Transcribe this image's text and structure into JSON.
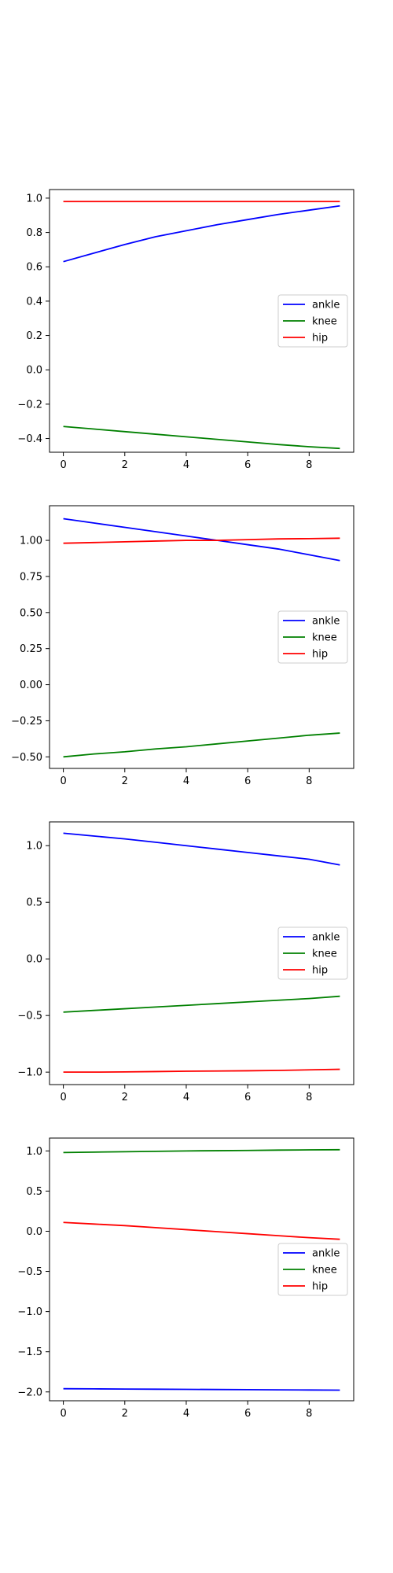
{
  "figure": {
    "background": "#ffffff"
  },
  "chart_data": [
    {
      "type": "line",
      "x": [
        0,
        1,
        2,
        3,
        4,
        5,
        6,
        7,
        8,
        9
      ],
      "xlim": [
        -0.45,
        9.45
      ],
      "ylim": [
        -0.48,
        1.05
      ],
      "xticks": [
        0,
        2,
        4,
        6,
        8
      ],
      "xtick_labels": [
        "0",
        "2",
        "4",
        "6",
        "8"
      ],
      "yticks": [
        -0.4,
        -0.2,
        0.0,
        0.2,
        0.4,
        0.6,
        0.8,
        1.0
      ],
      "ytick_labels": [
        "−0.4",
        "−0.2",
        "0.0",
        "0.2",
        "0.4",
        "0.6",
        "0.8",
        "1.0"
      ],
      "legend_position": "center-right",
      "series": [
        {
          "name": "ankle",
          "color": "#0000ff",
          "values": [
            0.63,
            0.68,
            0.73,
            0.775,
            0.81,
            0.845,
            0.875,
            0.905,
            0.93,
            0.955
          ]
        },
        {
          "name": "knee",
          "color": "#008000",
          "values": [
            -0.33,
            -0.345,
            -0.36,
            -0.375,
            -0.39,
            -0.405,
            -0.42,
            -0.435,
            -0.448,
            -0.458
          ]
        },
        {
          "name": "hip",
          "color": "#ff0000",
          "values": [
            0.98,
            0.98,
            0.98,
            0.98,
            0.98,
            0.98,
            0.98,
            0.98,
            0.98,
            0.98
          ]
        }
      ]
    },
    {
      "type": "line",
      "x": [
        0,
        1,
        2,
        3,
        4,
        5,
        6,
        7,
        8,
        9
      ],
      "xlim": [
        -0.45,
        9.45
      ],
      "ylim": [
        -0.58,
        1.24
      ],
      "xticks": [
        0,
        2,
        4,
        6,
        8
      ],
      "xtick_labels": [
        "0",
        "2",
        "4",
        "6",
        "8"
      ],
      "yticks": [
        -0.5,
        -0.25,
        0.0,
        0.25,
        0.5,
        0.75,
        1.0
      ],
      "ytick_labels": [
        "−0.50",
        "−0.25",
        "0.00",
        "0.25",
        "0.50",
        "0.75",
        "1.00"
      ],
      "legend_position": "center-right",
      "series": [
        {
          "name": "ankle",
          "color": "#0000ff",
          "values": [
            1.15,
            1.12,
            1.09,
            1.06,
            1.03,
            1.0,
            0.97,
            0.94,
            0.9,
            0.86
          ]
        },
        {
          "name": "knee",
          "color": "#008000",
          "values": [
            -0.5,
            -0.48,
            -0.465,
            -0.445,
            -0.43,
            -0.41,
            -0.39,
            -0.37,
            -0.35,
            -0.335
          ]
        },
        {
          "name": "hip",
          "color": "#ff0000",
          "values": [
            0.98,
            0.985,
            0.99,
            0.995,
            1.0,
            1.0,
            1.005,
            1.01,
            1.012,
            1.015
          ]
        }
      ]
    },
    {
      "type": "line",
      "x": [
        0,
        1,
        2,
        3,
        4,
        5,
        6,
        7,
        8,
        9
      ],
      "xlim": [
        -0.45,
        9.45
      ],
      "ylim": [
        -1.11,
        1.21
      ],
      "xticks": [
        0,
        2,
        4,
        6,
        8
      ],
      "xtick_labels": [
        "0",
        "2",
        "4",
        "6",
        "8"
      ],
      "yticks": [
        -1.0,
        -0.5,
        0.0,
        0.5,
        1.0
      ],
      "ytick_labels": [
        "−1.0",
        "−0.5",
        "0.0",
        "0.5",
        "1.0"
      ],
      "legend_position": "center-right",
      "series": [
        {
          "name": "ankle",
          "color": "#0000ff",
          "values": [
            1.11,
            1.085,
            1.06,
            1.03,
            1.0,
            0.97,
            0.94,
            0.91,
            0.88,
            0.83
          ]
        },
        {
          "name": "knee",
          "color": "#008000",
          "values": [
            -0.47,
            -0.455,
            -0.44,
            -0.425,
            -0.41,
            -0.395,
            -0.38,
            -0.365,
            -0.35,
            -0.33
          ]
        },
        {
          "name": "hip",
          "color": "#ff0000",
          "values": [
            -1.0,
            -1.0,
            -0.998,
            -0.995,
            -0.992,
            -0.99,
            -0.988,
            -0.985,
            -0.98,
            -0.975
          ]
        }
      ]
    },
    {
      "type": "line",
      "x": [
        0,
        1,
        2,
        3,
        4,
        5,
        6,
        7,
        8,
        9
      ],
      "xlim": [
        -0.45,
        9.45
      ],
      "ylim": [
        -2.11,
        1.16
      ],
      "xticks": [
        0,
        2,
        4,
        6,
        8
      ],
      "xtick_labels": [
        "0",
        "2",
        "4",
        "6",
        "8"
      ],
      "yticks": [
        -2.0,
        -1.5,
        -1.0,
        -0.5,
        0.0,
        0.5,
        1.0
      ],
      "ytick_labels": [
        "−2.0",
        "−1.5",
        "−1.0",
        "−0.5",
        "0.0",
        "0.5",
        "1.0"
      ],
      "legend_position": "center-right",
      "series": [
        {
          "name": "ankle",
          "color": "#0000ff",
          "values": [
            -1.96,
            -1.962,
            -1.964,
            -1.966,
            -1.968,
            -1.97,
            -1.972,
            -1.974,
            -1.976,
            -1.978
          ]
        },
        {
          "name": "knee",
          "color": "#008000",
          "values": [
            0.98,
            0.985,
            0.99,
            0.995,
            1.0,
            1.003,
            1.006,
            1.01,
            1.013,
            1.015
          ]
        },
        {
          "name": "hip",
          "color": "#ff0000",
          "values": [
            0.11,
            0.09,
            0.07,
            0.045,
            0.02,
            -0.005,
            -0.03,
            -0.055,
            -0.08,
            -0.1
          ]
        }
      ]
    }
  ]
}
